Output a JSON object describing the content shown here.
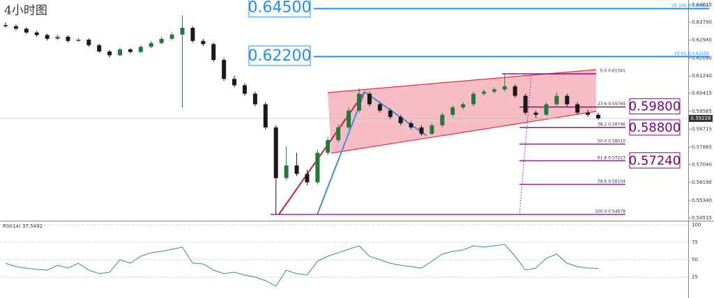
{
  "chart_data": {
    "type": "candlestick",
    "title": "4小时图",
    "open": [
      0.6365,
      0.636,
      0.6348,
      0.633,
      0.6318,
      0.63,
      0.631,
      0.629,
      0.6296,
      0.627,
      0.624,
      0.6222,
      0.625,
      0.6238,
      0.6262,
      0.628,
      0.63,
      0.632,
      0.6352,
      0.629,
      0.6275,
      0.62,
      0.611,
      0.608,
      0.604,
      0.599,
      0.588,
      0.564,
      0.57,
      0.566,
      0.562,
      0.576,
      0.582,
      0.588,
      0.596,
      0.604,
      0.599,
      0.596,
      0.593,
      0.59,
      0.588,
      0.585,
      0.589,
      0.594,
      0.5975,
      0.599,
      0.604,
      0.605,
      0.606,
      0.6075,
      0.603,
      0.595,
      0.594,
      0.599,
      0.603,
      0.599,
      0.595,
      0.594
    ],
    "high": [
      0.6378,
      0.6368,
      0.6355,
      0.6338,
      0.6325,
      0.632,
      0.6316,
      0.6305,
      0.6302,
      0.6276,
      0.6248,
      0.6258,
      0.6256,
      0.627,
      0.629,
      0.631,
      0.633,
      0.641,
      0.636,
      0.63,
      0.6282,
      0.621,
      0.6125,
      0.609,
      0.605,
      0.6,
      0.589,
      0.579,
      0.576,
      0.568,
      0.5775,
      0.5835,
      0.5895,
      0.5975,
      0.6065,
      0.605,
      0.6,
      0.597,
      0.594,
      0.591,
      0.589,
      0.59,
      0.595,
      0.5985,
      0.6,
      0.605,
      0.606,
      0.607,
      0.6134,
      0.6085,
      0.604,
      0.596,
      0.6,
      0.6045,
      0.604,
      0.6,
      0.5965,
      0.595
    ],
    "low": [
      0.6352,
      0.634,
      0.6322,
      0.631,
      0.6292,
      0.6295,
      0.6282,
      0.6285,
      0.6262,
      0.6232,
      0.621,
      0.6218,
      0.623,
      0.6232,
      0.6256,
      0.6274,
      0.6294,
      0.5975,
      0.6282,
      0.6265,
      0.619,
      0.61,
      0.607,
      0.603,
      0.598,
      0.587,
      0.5468,
      0.563,
      0.565,
      0.5605,
      0.561,
      0.575,
      0.581,
      0.587,
      0.595,
      0.598,
      0.595,
      0.592,
      0.589,
      0.587,
      0.584,
      0.5845,
      0.588,
      0.593,
      0.5965,
      0.598,
      0.603,
      0.604,
      0.605,
      0.602,
      0.594,
      0.5925,
      0.5935,
      0.598,
      0.598,
      0.594,
      0.593,
      0.5915
    ],
    "close": [
      0.636,
      0.6348,
      0.633,
      0.6318,
      0.63,
      0.631,
      0.629,
      0.6296,
      0.627,
      0.624,
      0.6222,
      0.625,
      0.6238,
      0.6262,
      0.628,
      0.63,
      0.632,
      0.6352,
      0.629,
      0.6275,
      0.62,
      0.611,
      0.608,
      0.604,
      0.599,
      0.588,
      0.564,
      0.57,
      0.566,
      0.562,
      0.576,
      0.582,
      0.588,
      0.596,
      0.604,
      0.599,
      0.596,
      0.593,
      0.59,
      0.588,
      0.585,
      0.589,
      0.594,
      0.5975,
      0.599,
      0.604,
      0.605,
      0.606,
      0.6075,
      0.603,
      0.595,
      0.594,
      0.599,
      0.603,
      0.599,
      0.595,
      0.594,
      0.5923
    ],
    "up_color": "#1f7a3c",
    "down_color": "#1a1a1a",
    "ylim": [
      0.5438,
      0.6484
    ],
    "yticks": [
      0.64615,
      {
        "value": 0.6379,
        "label": "0.63790"
      },
      {
        "value": 0.6294,
        "label": "0.62940"
      },
      {
        "value": 0.6209,
        "label": "0.62090"
      },
      {
        "value": 0.6124,
        "label": "0.61240"
      },
      0.60415,
      0.59565,
      0.58715,
      0.57865,
      {
        "value": 0.5704,
        "label": "0.57040"
      },
      {
        "value": 0.5619,
        "label": "0.56190"
      },
      {
        "value": 0.5534,
        "label": "0.55340"
      },
      0.54515
    ],
    "current_price": 0.59228,
    "fe_levels": [
      {
        "value": 0.64433,
        "label": "FE 100.0 0.64433"
      },
      {
        "value": 0.62159,
        "label": "FE 61.8 0.62159"
      }
    ],
    "fib_levels": [
      {
        "value": 0.61341,
        "label": "0.0 0.61341"
      },
      {
        "value": 0.59769,
        "label": "23.6 0.59769"
      },
      {
        "value": 0.58796,
        "label": "38.2 0.58796"
      },
      {
        "value": 0.5801,
        "label": "50.0 0.58010"
      },
      {
        "value": 0.57223,
        "label": "61.8 0.57223"
      },
      {
        "value": 0.56104,
        "label": "78.6 0.56104"
      },
      {
        "value": 0.54678,
        "label": "100.0 0.54678"
      }
    ],
    "targets": [
      {
        "value": 0.645,
        "label": "0.64500",
        "color": "#1e90ff"
      },
      {
        "value": 0.622,
        "label": "0.62200",
        "color": "#1e90ff"
      },
      {
        "value": 0.598,
        "label": "0.59800",
        "color": "#800080"
      },
      {
        "value": 0.588,
        "label": "0.58800",
        "color": "#800080"
      },
      {
        "value": 0.5724,
        "label": "0.57240",
        "color": "#800080"
      }
    ],
    "rsi": {
      "type": "line",
      "label": "RSI(14) 37.5492",
      "color": "#2f8f8f",
      "ylim": [
        0,
        100
      ],
      "yticks": [
        25,
        50,
        75,
        100
      ],
      "values": [
        45,
        40,
        38,
        36,
        35,
        42,
        38,
        45,
        35,
        30,
        32,
        50,
        45,
        55,
        60,
        62,
        65,
        68,
        45,
        44,
        35,
        30,
        32,
        28,
        25,
        20,
        12,
        35,
        30,
        28,
        48,
        55,
        60,
        65,
        70,
        55,
        50,
        45,
        42,
        40,
        38,
        48,
        58,
        62,
        64,
        70,
        68,
        70,
        72,
        55,
        35,
        38,
        52,
        58,
        45,
        40,
        38,
        37.5492
      ]
    }
  }
}
